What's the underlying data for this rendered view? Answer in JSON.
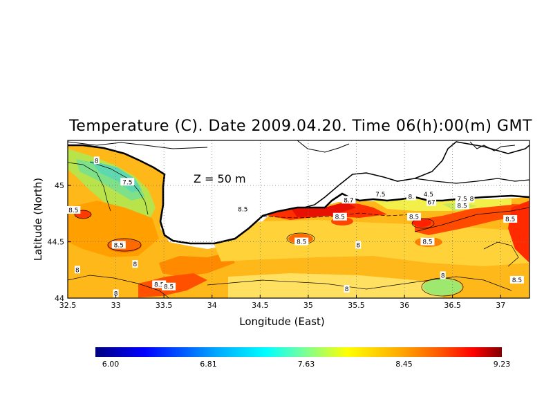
{
  "title": "Temperature (C). Date 2009.04.20. Time 06(h):00(m) GMT",
  "depth_label": "Z  =  50  m",
  "xlabel": "Longitude (East)",
  "ylabel": "Latitude (North)",
  "x_ticks": [
    "32.5",
    "33",
    "33.5",
    "34",
    "34.5",
    "35",
    "35.5",
    "36",
    "36.5",
    "37"
  ],
  "y_ticks": [
    "44",
    "44.5",
    "45"
  ],
  "contour_labels": [
    {
      "text": "8.5",
      "lon": 32.56,
      "lat": 44.78
    },
    {
      "text": "8",
      "lon": 32.8,
      "lat": 45.22
    },
    {
      "text": "7.5",
      "lon": 33.12,
      "lat": 45.03
    },
    {
      "text": "8.5",
      "lon": 33.03,
      "lat": 44.47
    },
    {
      "text": "8",
      "lon": 32.6,
      "lat": 44.25
    },
    {
      "text": "8",
      "lon": 33.2,
      "lat": 44.3
    },
    {
      "text": "8",
      "lon": 33.0,
      "lat": 44.04
    },
    {
      "text": "8.5",
      "lon": 33.45,
      "lat": 44.12
    },
    {
      "text": "8.5",
      "lon": 33.55,
      "lat": 44.1
    },
    {
      "text": "8.5",
      "lon": 34.32,
      "lat": 44.79
    },
    {
      "text": "8.7",
      "lon": 35.42,
      "lat": 44.87
    },
    {
      "text": "8.5",
      "lon": 35.33,
      "lat": 44.72
    },
    {
      "text": "8.5",
      "lon": 34.93,
      "lat": 44.5
    },
    {
      "text": "8",
      "lon": 35.52,
      "lat": 44.47
    },
    {
      "text": "8",
      "lon": 35.4,
      "lat": 44.08
    },
    {
      "text": "7.5",
      "lon": 35.75,
      "lat": 44.92
    },
    {
      "text": "8.",
      "lon": 36.07,
      "lat": 44.9
    },
    {
      "text": "4.5",
      "lon": 36.25,
      "lat": 44.92
    },
    {
      "text": "8.5",
      "lon": 36.1,
      "lat": 44.72
    },
    {
      "text": "67",
      "lon": 36.28,
      "lat": 44.85
    },
    {
      "text": "7.5",
      "lon": 36.6,
      "lat": 44.88
    },
    {
      "text": "8",
      "lon": 36.7,
      "lat": 44.88
    },
    {
      "text": "8.5",
      "lon": 36.6,
      "lat": 44.82
    },
    {
      "text": "8.5",
      "lon": 36.24,
      "lat": 44.5
    },
    {
      "text": "8",
      "lon": 36.4,
      "lat": 44.2
    },
    {
      "text": "8.5",
      "lon": 37.1,
      "lat": 44.7
    },
    {
      "text": "8.5",
      "lon": 37.17,
      "lat": 44.16
    }
  ],
  "colorbar": {
    "tick_labels": [
      "6.00",
      "6.81",
      "7.63",
      "8.45",
      "9.23"
    ],
    "colors": [
      "#000080",
      "#0000ff",
      "#00aaff",
      "#00ffff",
      "#66ffaa",
      "#ffff00",
      "#ffaa00",
      "#ff5500",
      "#ff0000",
      "#800000"
    ]
  },
  "colors": {
    "land": "#ffffff",
    "coast": "#000000",
    "grid": "#555555"
  }
}
